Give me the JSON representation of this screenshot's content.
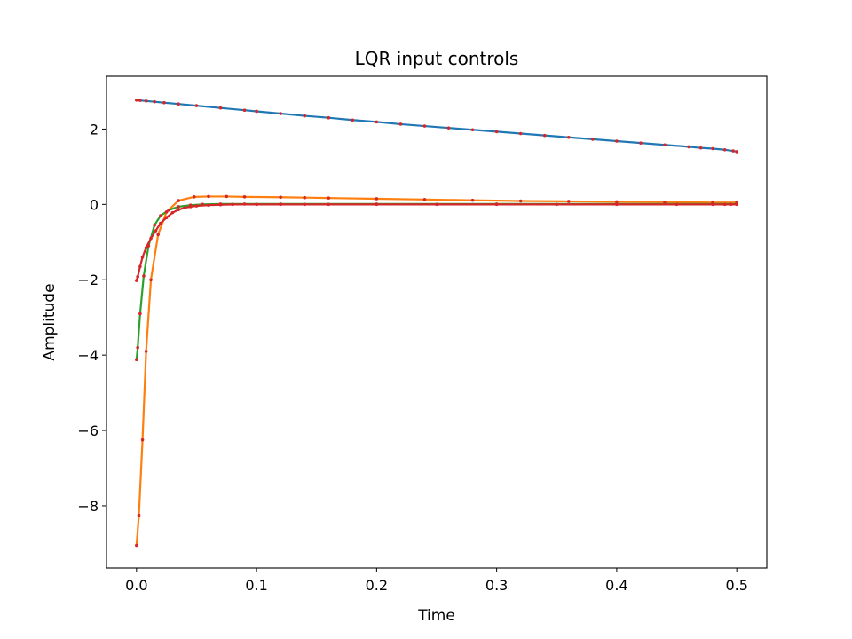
{
  "chart_data": {
    "type": "line",
    "title": "LQR input controls",
    "xlabel": "Time",
    "ylabel": "Amplitude",
    "xlim": [
      -0.025,
      0.525
    ],
    "ylim": [
      -9.65,
      3.4
    ],
    "xticks": [
      0.0,
      0.1,
      0.2,
      0.3,
      0.4,
      0.5
    ],
    "xtick_labels": [
      "0.0",
      "0.1",
      "0.2",
      "0.3",
      "0.4",
      "0.5"
    ],
    "yticks": [
      -8,
      -6,
      -4,
      -2,
      0,
      2
    ],
    "ytick_labels": [
      "−8",
      "−6",
      "−4",
      "−2",
      "0",
      "2"
    ],
    "grid": false,
    "marker_color": "#d62728",
    "series": [
      {
        "color": "#1f77b4",
        "x": [
          0,
          0.003,
          0.008,
          0.015,
          0.023,
          0.035,
          0.05,
          0.07,
          0.09,
          0.1,
          0.12,
          0.14,
          0.16,
          0.18,
          0.2,
          0.22,
          0.24,
          0.26,
          0.28,
          0.3,
          0.32,
          0.34,
          0.36,
          0.38,
          0.4,
          0.42,
          0.44,
          0.46,
          0.47,
          0.48,
          0.49,
          0.497,
          0.5
        ],
        "y": [
          2.77,
          2.76,
          2.745,
          2.725,
          2.7,
          2.665,
          2.62,
          2.56,
          2.5,
          2.47,
          2.41,
          2.35,
          2.3,
          2.24,
          2.19,
          2.13,
          2.08,
          2.03,
          1.98,
          1.93,
          1.88,
          1.83,
          1.78,
          1.73,
          1.68,
          1.63,
          1.58,
          1.53,
          1.5,
          1.48,
          1.45,
          1.42,
          1.4
        ]
      },
      {
        "color": "#ff7f0e",
        "x": [
          0,
          0.002,
          0.005,
          0.008,
          0.012,
          0.018,
          0.025,
          0.035,
          0.048,
          0.06,
          0.075,
          0.09,
          0.12,
          0.14,
          0.16,
          0.2,
          0.24,
          0.28,
          0.32,
          0.36,
          0.4,
          0.44,
          0.48,
          0.5
        ],
        "y": [
          -9.05,
          -8.25,
          -6.25,
          -3.9,
          -2.0,
          -0.8,
          -0.2,
          0.1,
          0.2,
          0.21,
          0.21,
          0.2,
          0.19,
          0.18,
          0.17,
          0.15,
          0.13,
          0.11,
          0.09,
          0.08,
          0.07,
          0.06,
          0.05,
          0.05
        ]
      },
      {
        "color": "#2ca02c",
        "x": [
          0,
          0.001,
          0.003,
          0.006,
          0.01,
          0.015,
          0.02,
          0.027,
          0.035,
          0.045,
          0.055,
          0.07,
          0.09,
          0.12,
          0.2,
          0.3,
          0.4,
          0.5
        ],
        "y": [
          -4.12,
          -3.8,
          -2.9,
          -1.9,
          -1.1,
          -0.55,
          -0.3,
          -0.15,
          -0.06,
          -0.02,
          0.0,
          0.01,
          0.01,
          0.01,
          0.01,
          0.01,
          0.01,
          0.01
        ]
      },
      {
        "color": "#d62728",
        "x": [
          0,
          0.001,
          0.003,
          0.005,
          0.008,
          0.012,
          0.016,
          0.02,
          0.025,
          0.03,
          0.035,
          0.04,
          0.045,
          0.05,
          0.06,
          0.07,
          0.08,
          0.1,
          0.12,
          0.14,
          0.16,
          0.2,
          0.25,
          0.3,
          0.35,
          0.4,
          0.45,
          0.48,
          0.49,
          0.495,
          0.5
        ],
        "y": [
          -2.02,
          -1.92,
          -1.65,
          -1.4,
          -1.15,
          -0.9,
          -0.7,
          -0.5,
          -0.35,
          -0.22,
          -0.14,
          -0.09,
          -0.06,
          -0.04,
          -0.02,
          -0.01,
          0.0,
          0.0,
          0.0,
          0.0,
          0.0,
          0.0,
          0.0,
          0.0,
          0.0,
          0.0,
          0.0,
          0.0,
          0.0,
          0.0,
          0.0
        ]
      }
    ]
  }
}
